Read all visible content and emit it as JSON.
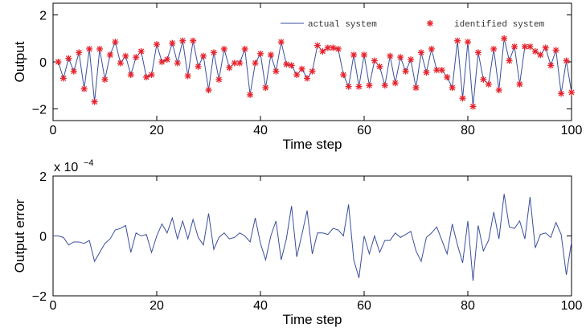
{
  "chart_data": [
    {
      "type": "line",
      "xlabel": "Time step",
      "ylabel": "Output",
      "xlim": [
        0,
        100
      ],
      "ylim": [
        -2.5,
        2.5
      ],
      "xticks": [
        0,
        20,
        40,
        60,
        80,
        100
      ],
      "yticks": [
        -2,
        0,
        2
      ],
      "legend_position": "top-right",
      "series": [
        {
          "name": "actual system",
          "style": "line",
          "color": "#3a4f9c",
          "x": [
            1,
            2,
            3,
            4,
            5,
            6,
            7,
            8,
            9,
            10,
            11,
            12,
            13,
            14,
            15,
            16,
            17,
            18,
            19,
            20,
            21,
            22,
            23,
            24,
            25,
            26,
            27,
            28,
            29,
            30,
            31,
            32,
            33,
            34,
            35,
            36,
            37,
            38,
            39,
            40,
            41,
            42,
            43,
            44,
            45,
            46,
            47,
            48,
            49,
            50,
            51,
            52,
            53,
            54,
            55,
            56,
            57,
            58,
            59,
            60,
            61,
            62,
            63,
            64,
            65,
            66,
            67,
            68,
            69,
            70,
            71,
            72,
            73,
            74,
            75,
            76,
            77,
            78,
            79,
            80,
            81,
            82,
            83,
            84,
            85,
            86,
            87,
            88,
            89,
            90,
            91,
            92,
            93,
            94,
            95,
            96,
            97,
            98,
            99,
            100
          ],
          "values": [
            0.0,
            -0.7,
            0.15,
            -0.4,
            0.4,
            -1.15,
            0.55,
            -1.7,
            0.55,
            -0.75,
            0.3,
            0.85,
            -0.05,
            0.25,
            -0.55,
            0.2,
            0.45,
            -0.65,
            -0.55,
            0.75,
            0.0,
            0.1,
            0.8,
            -0.05,
            0.9,
            -0.6,
            0.9,
            -0.2,
            0.25,
            -1.2,
            0.4,
            -0.75,
            0.55,
            -0.25,
            -0.05,
            -0.05,
            0.55,
            -1.4,
            -0.05,
            0.35,
            -1.1,
            0.3,
            -0.4,
            0.85,
            -0.1,
            -0.15,
            -0.55,
            -0.3,
            -0.7,
            -0.4,
            0.7,
            0.45,
            0.6,
            0.6,
            0.55,
            -0.55,
            -1.05,
            0.3,
            -1.05,
            0.3,
            -1.0,
            0.05,
            -0.2,
            -1.0,
            0.25,
            -0.9,
            0.2,
            -0.4,
            0.1,
            -1.1,
            0.4,
            -0.45,
            0.55,
            -0.35,
            -0.35,
            -0.65,
            -1.1,
            0.9,
            -1.55,
            0.85,
            -1.9,
            0.4,
            -0.75,
            -0.95,
            0.55,
            -1.2,
            1.0,
            0.05,
            0.65,
            -0.95,
            0.65,
            0.65,
            0.45,
            0.3,
            0.6,
            -0.15,
            0.5,
            -1.35,
            0.05,
            -1.3
          ]
        },
        {
          "name": "identified system",
          "style": "marker",
          "marker": "*",
          "color": "#e8222b",
          "x": [
            1,
            2,
            3,
            4,
            5,
            6,
            7,
            8,
            9,
            10,
            11,
            12,
            13,
            14,
            15,
            16,
            17,
            18,
            19,
            20,
            21,
            22,
            23,
            24,
            25,
            26,
            27,
            28,
            29,
            30,
            31,
            32,
            33,
            34,
            35,
            36,
            37,
            38,
            39,
            40,
            41,
            42,
            43,
            44,
            45,
            46,
            47,
            48,
            49,
            50,
            51,
            52,
            53,
            54,
            55,
            56,
            57,
            58,
            59,
            60,
            61,
            62,
            63,
            64,
            65,
            66,
            67,
            68,
            69,
            70,
            71,
            72,
            73,
            74,
            75,
            76,
            77,
            78,
            79,
            80,
            81,
            82,
            83,
            84,
            85,
            86,
            87,
            88,
            89,
            90,
            91,
            92,
            93,
            94,
            95,
            96,
            97,
            98,
            99,
            100
          ],
          "values": [
            0.0,
            -0.7,
            0.15,
            -0.4,
            0.4,
            -1.15,
            0.55,
            -1.7,
            0.55,
            -0.75,
            0.3,
            0.85,
            -0.05,
            0.25,
            -0.55,
            0.2,
            0.45,
            -0.65,
            -0.55,
            0.75,
            0.0,
            0.1,
            0.8,
            -0.05,
            0.9,
            -0.6,
            0.9,
            -0.2,
            0.25,
            -1.2,
            0.4,
            -0.75,
            0.55,
            -0.25,
            -0.05,
            -0.05,
            0.55,
            -1.4,
            -0.05,
            0.35,
            -1.1,
            0.3,
            -0.4,
            0.85,
            -0.1,
            -0.15,
            -0.55,
            -0.3,
            -0.7,
            -0.4,
            0.7,
            0.45,
            0.6,
            0.6,
            0.55,
            -0.55,
            -1.05,
            0.3,
            -1.05,
            0.3,
            -1.0,
            0.05,
            -0.2,
            -1.0,
            0.25,
            -0.9,
            0.2,
            -0.4,
            0.1,
            -1.1,
            0.4,
            -0.45,
            0.55,
            -0.35,
            -0.35,
            -0.65,
            -1.1,
            0.9,
            -1.55,
            0.85,
            -1.9,
            0.4,
            -0.75,
            -0.95,
            0.55,
            -1.2,
            1.0,
            0.05,
            0.65,
            -0.95,
            0.65,
            0.65,
            0.45,
            0.3,
            0.6,
            -0.15,
            0.5,
            -1.35,
            0.05,
            -1.3
          ]
        }
      ]
    },
    {
      "type": "line",
      "xlabel": "Time step",
      "ylabel": "Output error",
      "scale_label": "x 10",
      "scale_exponent": "−4",
      "xlim": [
        0,
        100
      ],
      "ylim": [
        -2,
        2
      ],
      "xticks": [
        0,
        20,
        40,
        60,
        80,
        100
      ],
      "yticks": [
        -2,
        0,
        2
      ],
      "series": [
        {
          "color": "#3a4f9c",
          "x": [
            0,
            1,
            2,
            3,
            4,
            5,
            6,
            7,
            8,
            9,
            10,
            11,
            12,
            13,
            14,
            15,
            16,
            17,
            18,
            19,
            20,
            21,
            22,
            23,
            24,
            25,
            26,
            27,
            28,
            29,
            30,
            31,
            32,
            33,
            34,
            35,
            36,
            37,
            38,
            39,
            40,
            41,
            42,
            43,
            44,
            45,
            46,
            47,
            48,
            49,
            50,
            51,
            52,
            53,
            54,
            55,
            56,
            57,
            58,
            59,
            60,
            61,
            62,
            63,
            64,
            65,
            66,
            67,
            68,
            69,
            70,
            71,
            72,
            73,
            74,
            75,
            76,
            77,
            78,
            79,
            80,
            81,
            82,
            83,
            84,
            85,
            86,
            87,
            88,
            89,
            90,
            91,
            92,
            93,
            94,
            95,
            96,
            97,
            98,
            99,
            100
          ],
          "values": [
            0.0,
            0.0,
            -0.05,
            -0.3,
            -0.2,
            -0.2,
            -0.25,
            -0.15,
            -0.85,
            -0.55,
            -0.25,
            -0.1,
            0.2,
            0.25,
            0.35,
            -0.55,
            0.1,
            0.0,
            0.05,
            -0.55,
            0.0,
            0.4,
            0.1,
            0.6,
            -0.1,
            0.5,
            -0.1,
            0.55,
            -0.05,
            -0.3,
            0.75,
            -0.45,
            -0.05,
            0.1,
            -0.1,
            -0.05,
            0.1,
            0.0,
            -0.2,
            0.6,
            -0.25,
            -0.8,
            0.0,
            0.5,
            -0.8,
            -0.1,
            1.0,
            -0.7,
            0.05,
            0.85,
            -0.6,
            0.1,
            0.1,
            0.05,
            0.25,
            0.2,
            0.0,
            1.05,
            -0.8,
            -1.4,
            0.0,
            -0.6,
            0.0,
            -0.55,
            -0.15,
            -0.15,
            0.1,
            -0.05,
            0.05,
            0.15,
            -0.5,
            -0.85,
            -0.05,
            0.1,
            0.3,
            -0.15,
            -0.6,
            0.4,
            -0.3,
            -0.9,
            0.5,
            -1.5,
            0.35,
            -0.5,
            -0.15,
            0.8,
            -0.1,
            1.4,
            0.3,
            0.25,
            0.5,
            -0.1,
            1.3,
            -0.4,
            0.05,
            0.1,
            -0.05,
            0.45,
            0.05,
            -1.3,
            -0.2
          ]
        }
      ]
    }
  ]
}
